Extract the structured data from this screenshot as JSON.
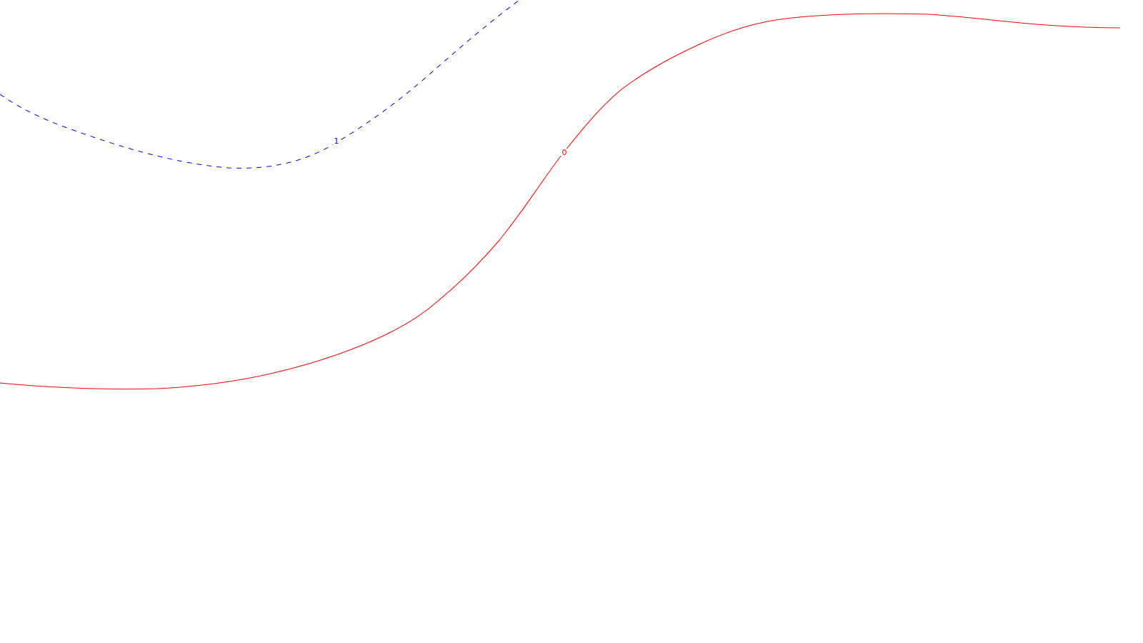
{
  "chart_data": {
    "type": "line",
    "title": "",
    "xlabel": "",
    "ylabel": "",
    "grid": false,
    "legend": "none",
    "series": [
      {
        "label": "1",
        "color": "#0000ff",
        "line_style": "dashed"
      },
      {
        "label": "0",
        "color": "#ff0000",
        "line_style": "solid"
      }
    ]
  }
}
